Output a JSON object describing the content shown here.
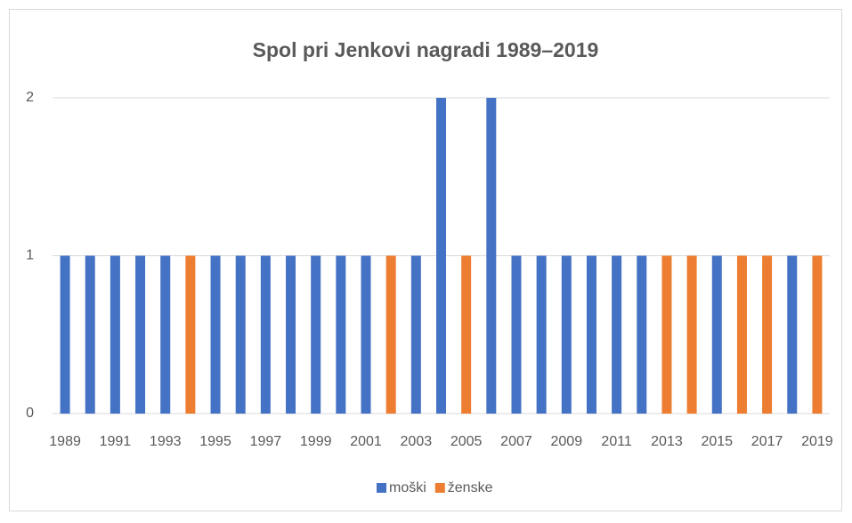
{
  "chart_data": {
    "type": "bar",
    "stacked": true,
    "title": "Spol pri Jenkovi nagradi 1989–2019",
    "categories": [
      "1989",
      null,
      "1991",
      null,
      "1993",
      null,
      "1995",
      null,
      "1997",
      null,
      "1999",
      null,
      "2001",
      null,
      "2003",
      null,
      "2005",
      null,
      "2007",
      null,
      "2009",
      null,
      "2011",
      null,
      "2013",
      null,
      "2015",
      null,
      "2017",
      null,
      "2019"
    ],
    "series": [
      {
        "name": "moški",
        "color": "#4472c4",
        "values": [
          1,
          1,
          1,
          1,
          1,
          0,
          1,
          1,
          1,
          1,
          1,
          1,
          1,
          0,
          1,
          2,
          0,
          2,
          1,
          1,
          1,
          1,
          1,
          1,
          0,
          0,
          1,
          0,
          0,
          1,
          0
        ]
      },
      {
        "name": "ženske",
        "color": "#ed7d31",
        "values": [
          0,
          0,
          0,
          0,
          0,
          1,
          0,
          0,
          0,
          0,
          0,
          0,
          0,
          1,
          0,
          0,
          1,
          0,
          0,
          0,
          0,
          0,
          0,
          0,
          1,
          1,
          0,
          1,
          1,
          0,
          1
        ]
      }
    ],
    "ylim": [
      0,
      2
    ],
    "yticks": [
      0,
      1,
      2
    ],
    "grid": true,
    "legend": "bottom"
  }
}
